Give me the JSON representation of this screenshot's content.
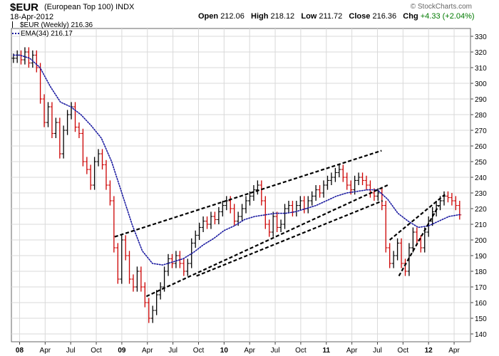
{
  "header": {
    "symbol": "$EUR",
    "description": "(European Top 100)",
    "index_tag": "INDX",
    "date": "18-Apr-2012",
    "open_label": "Open",
    "open": "212.06",
    "high_label": "High",
    "high": "218.12",
    "low_label": "Low",
    "low": "211.72",
    "close_label": "Close",
    "close": "216.36",
    "chg_label": "Chg",
    "chg": "+4.33 (+2.04%)",
    "watermark": "© StockCharts.com"
  },
  "legend": {
    "price": "$EUR (Weekly) 216.36",
    "ema": "EMA(34) 216.17"
  },
  "colors": {
    "up_bar": "#000000",
    "down_bar": "#cc0000",
    "ema": "#1a1aa0",
    "trendline": "#000000",
    "grid": "#d9d9d9"
  },
  "chart_data": {
    "type": "line",
    "interval": "weekly",
    "ylim": [
      135,
      335
    ],
    "y_ticks": [
      140,
      150,
      160,
      170,
      180,
      190,
      200,
      210,
      220,
      230,
      240,
      250,
      260,
      270,
      280,
      290,
      300,
      310,
      320,
      330
    ],
    "x_ticks": [
      "08",
      "Apr",
      "Jul",
      "Oct",
      "09",
      "Apr",
      "Jul",
      "Oct",
      "10",
      "Apr",
      "Jul",
      "Oct",
      "11",
      "Apr",
      "Jul",
      "Oct",
      "12",
      "Apr"
    ],
    "x_tick_dates": [
      "2008-01",
      "2008-04",
      "2008-07",
      "2008-10",
      "2009-01",
      "2009-04",
      "2009-07",
      "2009-10",
      "2010-01",
      "2010-04",
      "2010-07",
      "2010-10",
      "2011-01",
      "2011-04",
      "2011-07",
      "2011-10",
      "2012-01",
      "2012-04"
    ],
    "grid": true,
    "series": [
      {
        "name": "$EUR (Weekly)",
        "style": "ohlc-bars",
        "x_start": "2007-12-10",
        "points": [
          [
            2007.94,
            316
          ],
          [
            2007.977,
            318
          ],
          [
            2008.014,
            315
          ],
          [
            2008.052,
            320
          ],
          [
            2008.09,
            313
          ],
          [
            2008.128,
            318
          ],
          [
            2008.166,
            310
          ],
          [
            2008.203,
            290
          ],
          [
            2008.241,
            275
          ],
          [
            2008.279,
            285
          ],
          [
            2008.317,
            268
          ],
          [
            2008.355,
            275
          ],
          [
            2008.393,
            255
          ],
          [
            2008.43,
            270
          ],
          [
            2008.468,
            280
          ],
          [
            2008.506,
            285
          ],
          [
            2008.544,
            272
          ],
          [
            2008.582,
            268
          ],
          [
            2008.62,
            250
          ],
          [
            2008.658,
            245
          ],
          [
            2008.695,
            235
          ],
          [
            2008.733,
            250
          ],
          [
            2008.771,
            255
          ],
          [
            2008.809,
            248
          ],
          [
            2008.847,
            235
          ],
          [
            2008.885,
            225
          ],
          [
            2008.923,
            195
          ],
          [
            2008.961,
            175
          ],
          [
            2008.999,
            200
          ],
          [
            2009.037,
            190
          ],
          [
            2009.074,
            175
          ],
          [
            2009.112,
            170
          ],
          [
            2009.15,
            180
          ],
          [
            2009.188,
            170
          ],
          [
            2009.226,
            160
          ],
          [
            2009.264,
            150
          ],
          [
            2009.302,
            155
          ],
          [
            2009.34,
            165
          ],
          [
            2009.378,
            170
          ],
          [
            2009.416,
            180
          ],
          [
            2009.454,
            188
          ],
          [
            2009.492,
            185
          ],
          [
            2009.53,
            190
          ],
          [
            2009.568,
            185
          ],
          [
            2009.606,
            180
          ],
          [
            2009.644,
            185
          ],
          [
            2009.682,
            198
          ],
          [
            2009.72,
            203
          ],
          [
            2009.758,
            208
          ],
          [
            2009.796,
            212
          ],
          [
            2009.834,
            210
          ],
          [
            2009.872,
            215
          ],
          [
            2009.91,
            213
          ],
          [
            2009.948,
            218
          ],
          [
            2009.986,
            222
          ],
          [
            2010.024,
            225
          ],
          [
            2010.062,
            220
          ],
          [
            2010.1,
            212
          ],
          [
            2010.138,
            215
          ],
          [
            2010.176,
            220
          ],
          [
            2010.214,
            225
          ],
          [
            2010.252,
            228
          ],
          [
            2010.29,
            232
          ],
          [
            2010.328,
            235
          ],
          [
            2010.366,
            225
          ],
          [
            2010.404,
            210
          ],
          [
            2010.442,
            205
          ],
          [
            2010.48,
            215
          ],
          [
            2010.518,
            208
          ],
          [
            2010.556,
            210
          ],
          [
            2010.594,
            220
          ],
          [
            2010.632,
            222
          ],
          [
            2010.67,
            218
          ],
          [
            2010.708,
            222
          ],
          [
            2010.746,
            225
          ],
          [
            2010.784,
            220
          ],
          [
            2010.822,
            225
          ],
          [
            2010.86,
            228
          ],
          [
            2010.898,
            232
          ],
          [
            2010.936,
            230
          ],
          [
            2010.974,
            235
          ],
          [
            2011.012,
            238
          ],
          [
            2011.05,
            240
          ],
          [
            2011.088,
            243
          ],
          [
            2011.126,
            245
          ],
          [
            2011.164,
            240
          ],
          [
            2011.202,
            235
          ],
          [
            2011.24,
            232
          ],
          [
            2011.278,
            238
          ],
          [
            2011.316,
            240
          ],
          [
            2011.354,
            238
          ],
          [
            2011.392,
            235
          ],
          [
            2011.43,
            230
          ],
          [
            2011.468,
            228
          ],
          [
            2011.506,
            230
          ],
          [
            2011.544,
            222
          ],
          [
            2011.582,
            195
          ],
          [
            2011.62,
            185
          ],
          [
            2011.658,
            190
          ],
          [
            2011.696,
            198
          ],
          [
            2011.734,
            185
          ],
          [
            2011.772,
            180
          ],
          [
            2011.81,
            195
          ],
          [
            2011.848,
            205
          ],
          [
            2011.886,
            200
          ],
          [
            2011.924,
            195
          ],
          [
            2011.962,
            205
          ],
          [
            2012.0,
            212
          ],
          [
            2012.038,
            218
          ],
          [
            2012.076,
            222
          ],
          [
            2012.114,
            225
          ],
          [
            2012.152,
            228
          ],
          [
            2012.19,
            227
          ],
          [
            2012.228,
            225
          ],
          [
            2012.266,
            222
          ],
          [
            2012.304,
            216
          ]
        ]
      },
      {
        "name": "EMA(34)",
        "style": "dotted-line",
        "points": [
          [
            2007.94,
            318
          ],
          [
            2008.0,
            318
          ],
          [
            2008.1,
            316
          ],
          [
            2008.2,
            310
          ],
          [
            2008.3,
            298
          ],
          [
            2008.4,
            288
          ],
          [
            2008.5,
            285
          ],
          [
            2008.6,
            280
          ],
          [
            2008.7,
            273
          ],
          [
            2008.8,
            265
          ],
          [
            2008.9,
            250
          ],
          [
            2009.0,
            230
          ],
          [
            2009.1,
            210
          ],
          [
            2009.2,
            193
          ],
          [
            2009.3,
            185
          ],
          [
            2009.4,
            184
          ],
          [
            2009.5,
            186
          ],
          [
            2009.6,
            188
          ],
          [
            2009.7,
            192
          ],
          [
            2009.8,
            197
          ],
          [
            2009.9,
            201
          ],
          [
            2010.0,
            206
          ],
          [
            2010.1,
            209
          ],
          [
            2010.2,
            213
          ],
          [
            2010.3,
            215
          ],
          [
            2010.4,
            216
          ],
          [
            2010.5,
            217
          ],
          [
            2010.6,
            217
          ],
          [
            2010.7,
            218
          ],
          [
            2010.8,
            220
          ],
          [
            2010.9,
            222
          ],
          [
            2011.0,
            225
          ],
          [
            2011.1,
            228
          ],
          [
            2011.2,
            230
          ],
          [
            2011.3,
            231
          ],
          [
            2011.4,
            232
          ],
          [
            2011.5,
            232
          ],
          [
            2011.6,
            226
          ],
          [
            2011.7,
            217
          ],
          [
            2011.8,
            212
          ],
          [
            2011.9,
            208
          ],
          [
            2012.0,
            209
          ],
          [
            2012.1,
            212
          ],
          [
            2012.2,
            215
          ],
          [
            2012.304,
            216.17
          ]
        ]
      }
    ],
    "trendlines": [
      {
        "from": [
          2008.93,
          202
        ],
        "to": [
          2011.54,
          257
        ]
      },
      {
        "from": [
          2009.24,
          164
        ],
        "to": [
          2011.6,
          235
        ]
      },
      {
        "from": [
          2009.73,
          177
        ],
        "to": [
          2011.55,
          225
        ]
      },
      {
        "from": [
          2011.62,
          200
        ],
        "to": [
          2012.16,
          229
        ]
      },
      {
        "from": [
          2011.71,
          177
        ],
        "to": [
          2012.1,
          222
        ]
      }
    ]
  }
}
